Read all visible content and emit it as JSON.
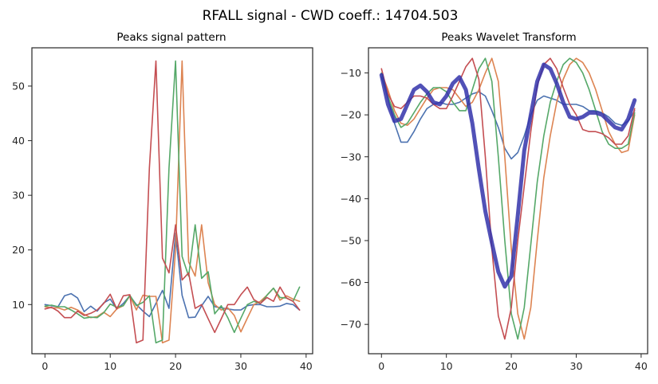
{
  "title": "RFALL signal   -   CWD coeff.: 14704.503",
  "colors": {
    "blue": "#4c72b0",
    "orange": "#dd8452",
    "green": "#55a868",
    "red": "#c44e52",
    "mean": "#3333aa"
  },
  "chart_data": [
    {
      "type": "line",
      "title": "Peaks signal pattern",
      "xlim": [
        -2,
        41
      ],
      "ylim": [
        1,
        57
      ],
      "xticks": [
        0,
        10,
        20,
        30,
        40
      ],
      "yticks": [
        10,
        20,
        30,
        40,
        50
      ],
      "series": [
        {
          "color": "blue",
          "width": 1.6,
          "x": [
            0,
            1,
            2,
            3,
            4,
            5,
            6,
            7,
            8,
            9,
            10,
            11,
            12,
            13,
            14,
            15,
            16,
            17,
            18,
            19,
            20,
            21,
            22,
            23,
            24,
            25,
            26,
            27,
            28,
            29,
            30,
            31,
            32,
            33,
            34,
            35,
            36,
            37,
            38,
            39
          ],
          "y": [
            10,
            9.8,
            9.6,
            11.6,
            12,
            11.2,
            8.7,
            9.7,
            8.8,
            10.3,
            11,
            9.2,
            10.2,
            11.6,
            10,
            8.8,
            7.8,
            10.2,
            12.6,
            9.3,
            23,
            11.7,
            7.6,
            7.7,
            9.8,
            11.5,
            9.6,
            9.4,
            9.2,
            9,
            9,
            9.8,
            10,
            10,
            9.6,
            9.6,
            9.7,
            10.2,
            10,
            9
          ]
        },
        {
          "color": "orange",
          "width": 1.6,
          "x": [
            0,
            1,
            2,
            3,
            4,
            5,
            6,
            7,
            8,
            9,
            10,
            11,
            12,
            13,
            14,
            15,
            16,
            17,
            18,
            19,
            20,
            21,
            22,
            23,
            24,
            25,
            26,
            27,
            28,
            29,
            30,
            31,
            32,
            33,
            34,
            35,
            36,
            37,
            38,
            39
          ],
          "y": [
            9.6,
            9.4,
            9.4,
            9,
            9.5,
            9,
            8.2,
            7.6,
            7.8,
            8.6,
            7.8,
            9.2,
            9.8,
            11.6,
            9,
            11.7,
            11.5,
            11.5,
            3,
            3.5,
            20,
            54.6,
            17.8,
            15.2,
            24.6,
            14,
            10,
            9,
            9.4,
            8,
            5,
            7.5,
            10,
            10.6,
            11.7,
            13,
            10.8,
            11.6,
            11,
            10.6
          ]
        },
        {
          "color": "green",
          "width": 1.6,
          "x": [
            0,
            1,
            2,
            3,
            4,
            5,
            6,
            7,
            8,
            9,
            10,
            11,
            12,
            13,
            14,
            15,
            16,
            17,
            18,
            19,
            20,
            21,
            22,
            23,
            24,
            25,
            26,
            27,
            28,
            29,
            30,
            31,
            32,
            33,
            34,
            35,
            36,
            37,
            38,
            39
          ],
          "y": [
            9.7,
            9.9,
            9.6,
            9.6,
            9,
            8.3,
            7.5,
            7.7,
            7.6,
            8.5,
            10.1,
            9.5,
            9.8,
            11.7,
            9.8,
            10.4,
            11.6,
            3,
            3.5,
            35,
            54.6,
            18.8,
            15.2,
            24.6,
            14.8,
            16,
            8.3,
            9.8,
            7.6,
            4.9,
            7.5,
            10,
            10.6,
            10.2,
            11.7,
            13,
            11.3,
            11.2,
            10.6,
            13.2
          ]
        },
        {
          "color": "red",
          "width": 1.6,
          "x": [
            0,
            1,
            2,
            3,
            4,
            5,
            6,
            7,
            8,
            9,
            10,
            11,
            12,
            13,
            14,
            15,
            16,
            17,
            18,
            19,
            20,
            21,
            22,
            23,
            24,
            25,
            26,
            27,
            28,
            29,
            30,
            31,
            32,
            33,
            34,
            35,
            36,
            37,
            38,
            39
          ],
          "y": [
            9.2,
            9.5,
            8.8,
            7.6,
            7.6,
            8.8,
            8,
            8.4,
            9,
            10.2,
            11.9,
            9.2,
            11.6,
            11.8,
            3,
            3.5,
            35,
            54.6,
            18.5,
            15.8,
            24.6,
            14.5,
            15.8,
            9.3,
            10,
            7.4,
            4.9,
            7.4,
            10,
            10,
            11.8,
            13.2,
            10.9,
            10.2,
            11.3,
            10.6,
            13.2,
            11.2,
            10.6,
            9
          ]
        }
      ]
    },
    {
      "type": "line",
      "title": "Peaks Wavelet Transform",
      "xlim": [
        -2,
        41
      ],
      "ylim": [
        -77,
        -4
      ],
      "xticks": [
        0,
        10,
        20,
        30,
        40
      ],
      "yticks": [
        -10,
        -20,
        -30,
        -40,
        -50,
        -60,
        -70
      ],
      "series": [
        {
          "color": "blue",
          "width": 1.6,
          "x": [
            0,
            1,
            2,
            3,
            4,
            5,
            6,
            7,
            8,
            9,
            10,
            11,
            12,
            13,
            14,
            15,
            16,
            17,
            18,
            19,
            20,
            21,
            22,
            23,
            24,
            25,
            26,
            27,
            28,
            29,
            30,
            31,
            32,
            33,
            34,
            35,
            36,
            37,
            38,
            39
          ],
          "y": [
            -11,
            -16,
            -22,
            -26.5,
            -26.5,
            -24,
            -21,
            -18.5,
            -17.5,
            -17,
            -17.5,
            -17.5,
            -17,
            -16,
            -15,
            -14.5,
            -15.5,
            -19,
            -23,
            -28,
            -30.5,
            -29,
            -25,
            -20,
            -16.5,
            -15.5,
            -16,
            -16.5,
            -17.5,
            -17.5,
            -17.5,
            -18,
            -19,
            -19,
            -19.5,
            -20.5,
            -22,
            -22.5,
            -21.5,
            -19
          ]
        },
        {
          "color": "orange",
          "width": 1.6,
          "x": [
            0,
            1,
            2,
            3,
            4,
            5,
            6,
            7,
            8,
            9,
            10,
            11,
            12,
            13,
            14,
            15,
            16,
            17,
            18,
            19,
            20,
            21,
            22,
            23,
            24,
            25,
            26,
            27,
            28,
            29,
            30,
            31,
            32,
            33,
            34,
            35,
            36,
            37,
            38,
            39
          ],
          "y": [
            -10,
            -14,
            -19,
            -22,
            -22.5,
            -21,
            -18.5,
            -16,
            -14,
            -13.5,
            -13.5,
            -14,
            -16,
            -18,
            -17,
            -14,
            -10,
            -6.5,
            -12,
            -30,
            -52,
            -67.5,
            -73.5,
            -66,
            -50,
            -35,
            -25,
            -17,
            -11.5,
            -8,
            -6.5,
            -7.5,
            -10,
            -14,
            -19,
            -24,
            -27,
            -29,
            -28.5,
            -20
          ]
        },
        {
          "color": "green",
          "width": 1.6,
          "x": [
            0,
            1,
            2,
            3,
            4,
            5,
            6,
            7,
            8,
            9,
            10,
            11,
            12,
            13,
            14,
            15,
            16,
            17,
            18,
            19,
            20,
            21,
            22,
            23,
            24,
            25,
            26,
            27,
            28,
            29,
            30,
            31,
            32,
            33,
            34,
            35,
            36,
            37,
            38,
            39
          ],
          "y": [
            -10,
            -15.5,
            -20,
            -23,
            -22,
            -19.5,
            -17,
            -15,
            -13.5,
            -13.5,
            -14.5,
            -17,
            -19,
            -19,
            -14,
            -9,
            -6.5,
            -12,
            -30,
            -50,
            -67.5,
            -73.5,
            -66,
            -51,
            -36,
            -25,
            -17,
            -12,
            -8,
            -6.5,
            -7.5,
            -10,
            -14,
            -19,
            -24,
            -27,
            -28,
            -28,
            -27,
            -19.5
          ]
        },
        {
          "color": "red",
          "width": 1.6,
          "x": [
            0,
            1,
            2,
            3,
            4,
            5,
            6,
            7,
            8,
            9,
            10,
            11,
            12,
            13,
            14,
            15,
            16,
            17,
            18,
            19,
            20,
            21,
            22,
            23,
            24,
            25,
            26,
            27,
            28,
            29,
            30,
            31,
            32,
            33,
            34,
            35,
            36,
            37,
            38,
            39
          ],
          "y": [
            -9,
            -15,
            -18,
            -18.5,
            -17,
            -15.5,
            -15.5,
            -16,
            -17.5,
            -18.5,
            -18.5,
            -15.5,
            -12,
            -8.5,
            -6.5,
            -11.5,
            -30,
            -52,
            -68,
            -73.5,
            -66,
            -50,
            -37,
            -24,
            -13,
            -8,
            -6.5,
            -9,
            -13.5,
            -17.5,
            -20,
            -23.5,
            -24,
            -24,
            -24.5,
            -25.5,
            -27,
            -27,
            -25,
            -18.5
          ]
        },
        {
          "color": "mean",
          "width": 5,
          "opacity": 0.85,
          "x": [
            0,
            1,
            2,
            3,
            4,
            5,
            6,
            7,
            8,
            9,
            10,
            11,
            12,
            13,
            14,
            15,
            16,
            17,
            18,
            19,
            20,
            21,
            22,
            23,
            24,
            25,
            26,
            27,
            28,
            29,
            30,
            31,
            32,
            33,
            34,
            35,
            36,
            37,
            38,
            39
          ],
          "y": [
            -10.5,
            -17.5,
            -21.5,
            -21,
            -17.5,
            -14,
            -13,
            -14.5,
            -17,
            -17.5,
            -15.5,
            -12.5,
            -11,
            -14,
            -22,
            -33,
            -43,
            -50.5,
            -57.5,
            -61,
            -58.5,
            -44,
            -28.5,
            -20,
            -12,
            -8,
            -9,
            -12.5,
            -17,
            -20.5,
            -21,
            -20.5,
            -19.5,
            -19.5,
            -20,
            -21.5,
            -23,
            -23.5,
            -21,
            -16.5
          ]
        }
      ]
    }
  ]
}
